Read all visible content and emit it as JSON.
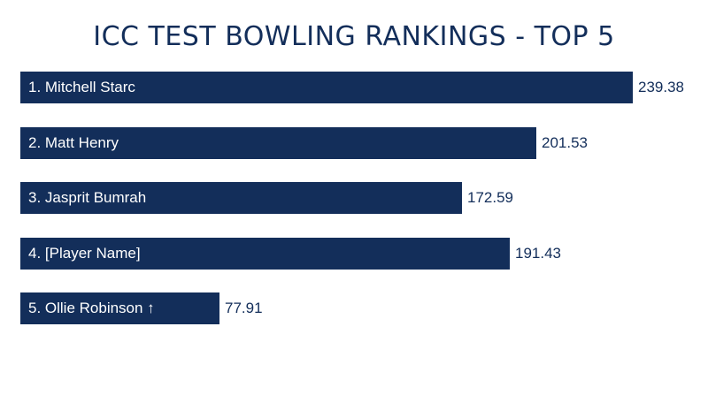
{
  "chart_data": {
    "type": "bar",
    "orientation": "horizontal",
    "title": "ICC TEST BOWLING RANKINGS - TOP 5",
    "categories": [
      "1. Mitchell Starc",
      "2. Matt Henry",
      "3. Jasprit Bumrah",
      "4. [Player Name]",
      "5. Ollie Robinson ↑"
    ],
    "values": [
      239.38,
      201.53,
      172.59,
      191.43,
      77.91
    ],
    "value_labels": [
      "239.38",
      "201.53",
      "172.59",
      "191.43",
      "77.91"
    ],
    "xlim": [
      0,
      239.38
    ],
    "grid": false,
    "legend": "none",
    "colors": {
      "bar": "#132e5a",
      "title": "#132e5a",
      "bar_text": "#ffffff",
      "value_text": "#132e5a"
    }
  }
}
